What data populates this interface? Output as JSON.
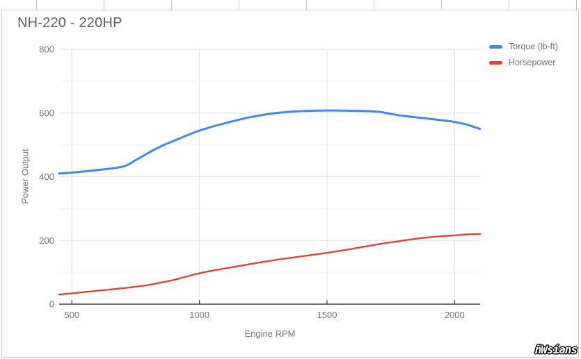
{
  "chart_data": {
    "type": "line",
    "title": "NH-220 - 220HP",
    "xlabel": "Engine RPM",
    "ylabel": "Power Output",
    "xlim": [
      450,
      2100
    ],
    "ylim": [
      0,
      800
    ],
    "x_ticks": [
      500,
      1000,
      1500,
      2000
    ],
    "y_ticks": [
      0,
      200,
      400,
      600,
      800
    ],
    "minor_y_grid_step": 100,
    "grid": "major light gray horizontal and vertical, minor lighter horizontal",
    "legend_position": "top-right",
    "x": [
      450,
      500,
      600,
      700,
      750,
      800,
      850,
      900,
      1000,
      1100,
      1200,
      1300,
      1400,
      1500,
      1600,
      1700,
      1750,
      1800,
      1900,
      2000,
      2050,
      2100
    ],
    "series": [
      {
        "name": "Torque (lb-ft)",
        "color": "#4285f4",
        "values": [
          410,
          413,
          421,
          432,
          452,
          475,
          496,
          513,
          545,
          568,
          587,
          600,
          606,
          608,
          607,
          604,
          597,
          591,
          582,
          572,
          563,
          550
        ]
      },
      {
        "name": "Horsepower",
        "color": "#db4437",
        "values": [
          30,
          34,
          42,
          50,
          55,
          60,
          68,
          76,
          97,
          112,
          126,
          139,
          150,
          161,
          174,
          188,
          194,
          200,
          210,
          216,
          219,
          220
        ]
      }
    ]
  },
  "colors": {
    "grid_major": "#e2e2e2",
    "grid_minor": "#f2f2f2",
    "axis_line": "#424242",
    "tick_label": "#757575",
    "title_text": "#616161",
    "frame_border": "#c9c9c9"
  },
  "watermark": {
    "text": "ñWsíans"
  }
}
